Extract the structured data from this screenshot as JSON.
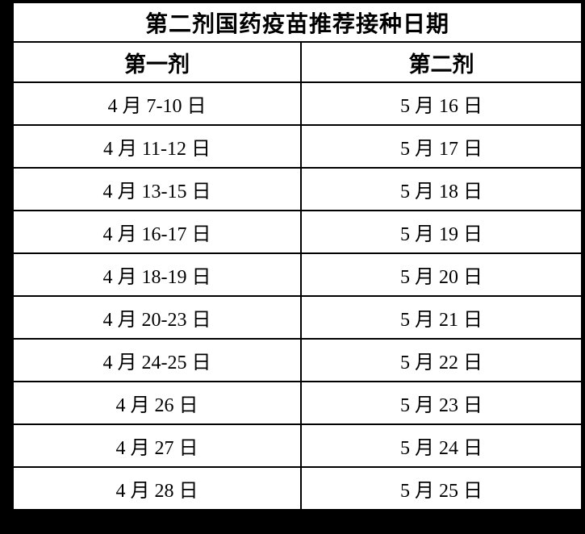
{
  "table": {
    "title": "第二剂国药疫苗推荐接种日期",
    "columns": {
      "first_dose": "第一剂",
      "second_dose": "第二剂"
    },
    "rows": [
      [
        "4 月 7-10 日",
        "5 月 16 日"
      ],
      [
        "4 月 11-12 日",
        "5 月 17 日"
      ],
      [
        "4 月 13-15 日",
        "5 月 18 日"
      ],
      [
        "4 月 16-17 日",
        "5 月 19 日"
      ],
      [
        "4 月 18-19 日",
        "5 月 20 日"
      ],
      [
        "4 月 20-23 日",
        "5 月 21 日"
      ],
      [
        "4 月 24-25 日",
        "5 月 22 日"
      ],
      [
        "4 月 26 日",
        "5 月 23 日"
      ],
      [
        "4 月 27 日",
        "5 月 24 日"
      ],
      [
        "4 月 28 日",
        "5 月 25 日"
      ]
    ],
    "colors": {
      "text": "#000000",
      "table_background": "#ffffff",
      "grid_border": "#000000",
      "page_background": "#000000"
    }
  }
}
